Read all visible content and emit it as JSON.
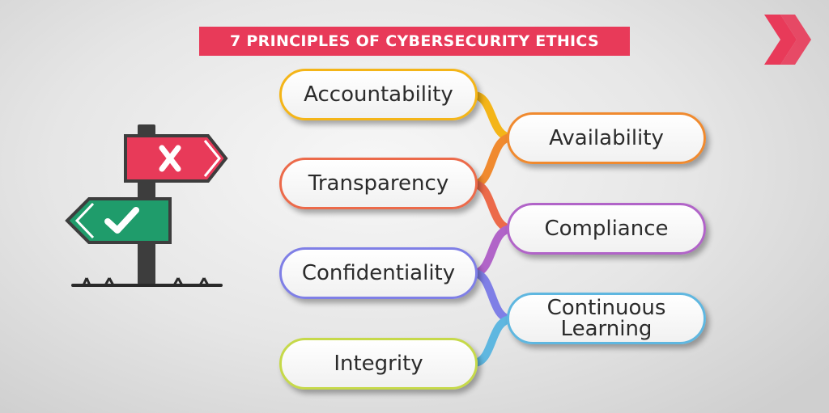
{
  "title": "7 PRINCIPLES OF CYBERSECURITY ETHICS",
  "principles": [
    {
      "label": "Accountability",
      "color": "#f4b518",
      "side": "left"
    },
    {
      "label": "Availability",
      "color": "#f08a2f",
      "side": "right"
    },
    {
      "label": "Transparency",
      "color": "#ec6a4a",
      "side": "left"
    },
    {
      "label": "Compliance",
      "color": "#b164c8",
      "side": "right"
    },
    {
      "label": "Confidentiality",
      "color": "#7f7fe6",
      "side": "left"
    },
    {
      "label": "Continuous\nLearning",
      "color": "#5fb7e0",
      "side": "right"
    },
    {
      "label": "Integrity",
      "color": "#c6d94a",
      "side": "left"
    }
  ],
  "icons": {
    "brand": "double-chevron-icon",
    "signpost": "signpost-icon",
    "reject": "x-mark-icon",
    "accept": "check-mark-icon"
  },
  "colors": {
    "banner": "#e83a59",
    "reject_sign": "#e83a59",
    "accept_sign": "#1f9c6b",
    "pole": "#3d3d3d"
  }
}
